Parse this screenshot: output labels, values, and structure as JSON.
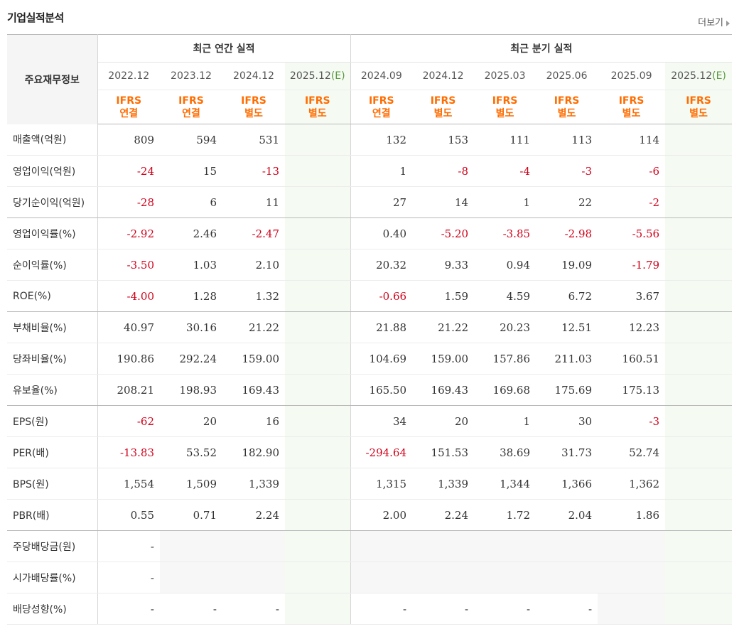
{
  "section": {
    "title": "기업실적분석",
    "more_label": "더보기"
  },
  "table": {
    "info_header": "주요재무정보",
    "groups": [
      {
        "label": "최근 연간 실적"
      },
      {
        "label": "최근 분기 실적"
      }
    ],
    "periods": [
      {
        "year": "2022.12",
        "estimate": "",
        "ifrs1": "IFRS",
        "ifrs2": "연결"
      },
      {
        "year": "2023.12",
        "estimate": "",
        "ifrs1": "IFRS",
        "ifrs2": "연결"
      },
      {
        "year": "2024.12",
        "estimate": "",
        "ifrs1": "IFRS",
        "ifrs2": "별도"
      },
      {
        "year": "2025.12",
        "estimate": "(E)",
        "ifrs1": "IFRS",
        "ifrs2": "별도"
      },
      {
        "year": "2024.09",
        "estimate": "",
        "ifrs1": "IFRS",
        "ifrs2": "연결"
      },
      {
        "year": "2024.12",
        "estimate": "",
        "ifrs1": "IFRS",
        "ifrs2": "별도"
      },
      {
        "year": "2025.03",
        "estimate": "",
        "ifrs1": "IFRS",
        "ifrs2": "별도"
      },
      {
        "year": "2025.06",
        "estimate": "",
        "ifrs1": "IFRS",
        "ifrs2": "별도"
      },
      {
        "year": "2025.09",
        "estimate": "",
        "ifrs1": "IFRS",
        "ifrs2": "별도"
      },
      {
        "year": "2025.12",
        "estimate": "(E)",
        "ifrs1": "IFRS",
        "ifrs2": "별도"
      }
    ],
    "rows": [
      {
        "label": "매출액(억원)",
        "values": [
          "809",
          "594",
          "531",
          "",
          "132",
          "153",
          "111",
          "113",
          "114",
          ""
        ],
        "blank": []
      },
      {
        "label": "영업이익(억원)",
        "values": [
          "-24",
          "15",
          "-13",
          "",
          "1",
          "-8",
          "-4",
          "-3",
          "-6",
          ""
        ],
        "blank": []
      },
      {
        "label": "당기순이익(억원)",
        "values": [
          "-28",
          "6",
          "11",
          "",
          "27",
          "14",
          "1",
          "22",
          "-2",
          ""
        ],
        "blank": []
      },
      {
        "label": "영업이익률(%)",
        "values": [
          "-2.92",
          "2.46",
          "-2.47",
          "",
          "0.40",
          "-5.20",
          "-3.85",
          "-2.98",
          "-5.56",
          ""
        ],
        "blank": []
      },
      {
        "label": "순이익률(%)",
        "values": [
          "-3.50",
          "1.03",
          "2.10",
          "",
          "20.32",
          "9.33",
          "0.94",
          "19.09",
          "-1.79",
          ""
        ],
        "blank": []
      },
      {
        "label": "ROE(%)",
        "values": [
          "-4.00",
          "1.28",
          "1.32",
          "",
          "-0.66",
          "1.59",
          "4.59",
          "6.72",
          "3.67",
          ""
        ],
        "blank": []
      },
      {
        "label": "부채비율(%)",
        "values": [
          "40.97",
          "30.16",
          "21.22",
          "",
          "21.88",
          "21.22",
          "20.23",
          "12.51",
          "12.23",
          ""
        ],
        "blank": []
      },
      {
        "label": "당좌비율(%)",
        "values": [
          "190.86",
          "292.24",
          "159.00",
          "",
          "104.69",
          "159.00",
          "157.86",
          "211.03",
          "160.51",
          ""
        ],
        "blank": []
      },
      {
        "label": "유보율(%)",
        "values": [
          "208.21",
          "198.93",
          "169.43",
          "",
          "165.50",
          "169.43",
          "169.68",
          "175.69",
          "175.13",
          ""
        ],
        "blank": []
      },
      {
        "label": "EPS(원)",
        "values": [
          "-62",
          "20",
          "16",
          "",
          "34",
          "20",
          "1",
          "30",
          "-3",
          ""
        ],
        "blank": []
      },
      {
        "label": "PER(배)",
        "values": [
          "-13.83",
          "53.52",
          "182.90",
          "",
          "-294.64",
          "151.53",
          "38.69",
          "31.73",
          "52.74",
          ""
        ],
        "blank": []
      },
      {
        "label": "BPS(원)",
        "values": [
          "1,554",
          "1,509",
          "1,339",
          "",
          "1,315",
          "1,339",
          "1,344",
          "1,366",
          "1,362",
          ""
        ],
        "blank": []
      },
      {
        "label": "PBR(배)",
        "values": [
          "0.55",
          "0.71",
          "2.24",
          "",
          "2.00",
          "2.24",
          "1.72",
          "2.04",
          "1.86",
          ""
        ],
        "blank": []
      },
      {
        "label": "주당배당금(원)",
        "values": [
          "-",
          "",
          "",
          "",
          "",
          "",
          "",
          "",
          "",
          ""
        ],
        "blank": [
          1,
          2,
          4,
          5,
          6,
          7,
          8
        ]
      },
      {
        "label": "시가배당률(%)",
        "values": [
          "-",
          "",
          "",
          "",
          "",
          "",
          "",
          "",
          "",
          ""
        ],
        "blank": [
          1,
          2,
          4,
          5,
          6,
          7,
          8
        ]
      },
      {
        "label": "배당성향(%)",
        "values": [
          "-",
          "-",
          "-",
          "",
          "-",
          "-",
          "-",
          "-",
          "",
          ""
        ],
        "blank": [
          8
        ]
      }
    ]
  }
}
